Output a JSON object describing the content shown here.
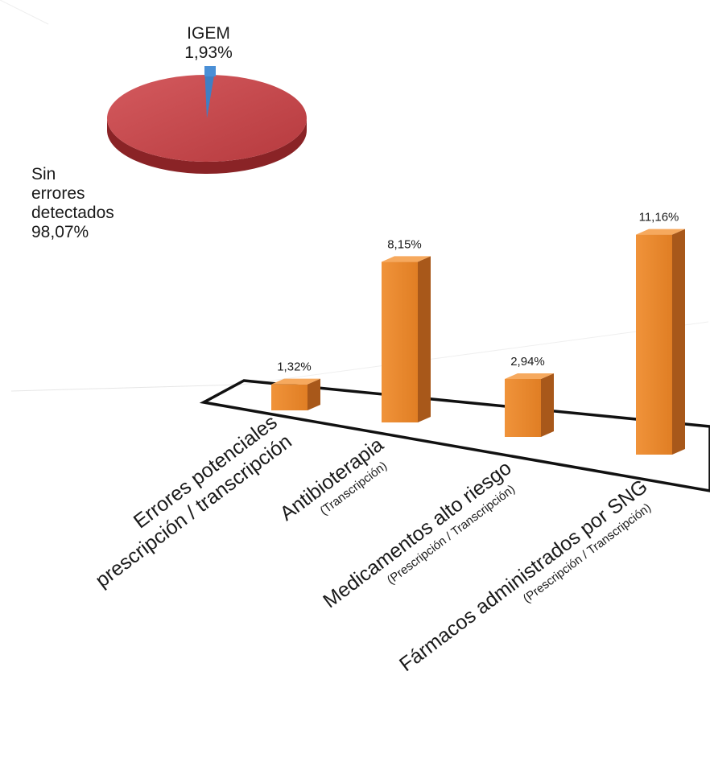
{
  "chart_data": [
    {
      "type": "pie",
      "slices": [
        {
          "label": "IGEM",
          "value": 1.93,
          "value_text": "1,93%",
          "color": "#3f7fc4"
        },
        {
          "label": "Sin errores detectados",
          "value": 98.07,
          "value_text": "98,07%",
          "color": "#c5464a"
        }
      ],
      "labels": {
        "igem_name": "IGEM",
        "igem_value": "1,93%",
        "sin_line1": "Sin",
        "sin_line2": "errores",
        "sin_line3": "detectados",
        "sin_value": "98,07%"
      }
    },
    {
      "type": "bar",
      "bar_color": "#e8872a",
      "categories": [
        {
          "name": "Errores potenciales",
          "name2": "prescripción / transcripción",
          "sub": ""
        },
        {
          "name": "Antibioterapia",
          "name2": "",
          "sub": "(Transcripción)"
        },
        {
          "name": "Medicamentos alto riesgo",
          "name2": "",
          "sub": "(Prescripción / Transcripción)"
        },
        {
          "name": "Fármacos administrados por SNG",
          "name2": "",
          "sub": "(Prescripción / Transcripción)"
        }
      ],
      "values": [
        1.32,
        8.15,
        2.94,
        11.16
      ],
      "value_labels": [
        "1,32%",
        "8,15%",
        "2,94%",
        "11,16%"
      ]
    }
  ]
}
